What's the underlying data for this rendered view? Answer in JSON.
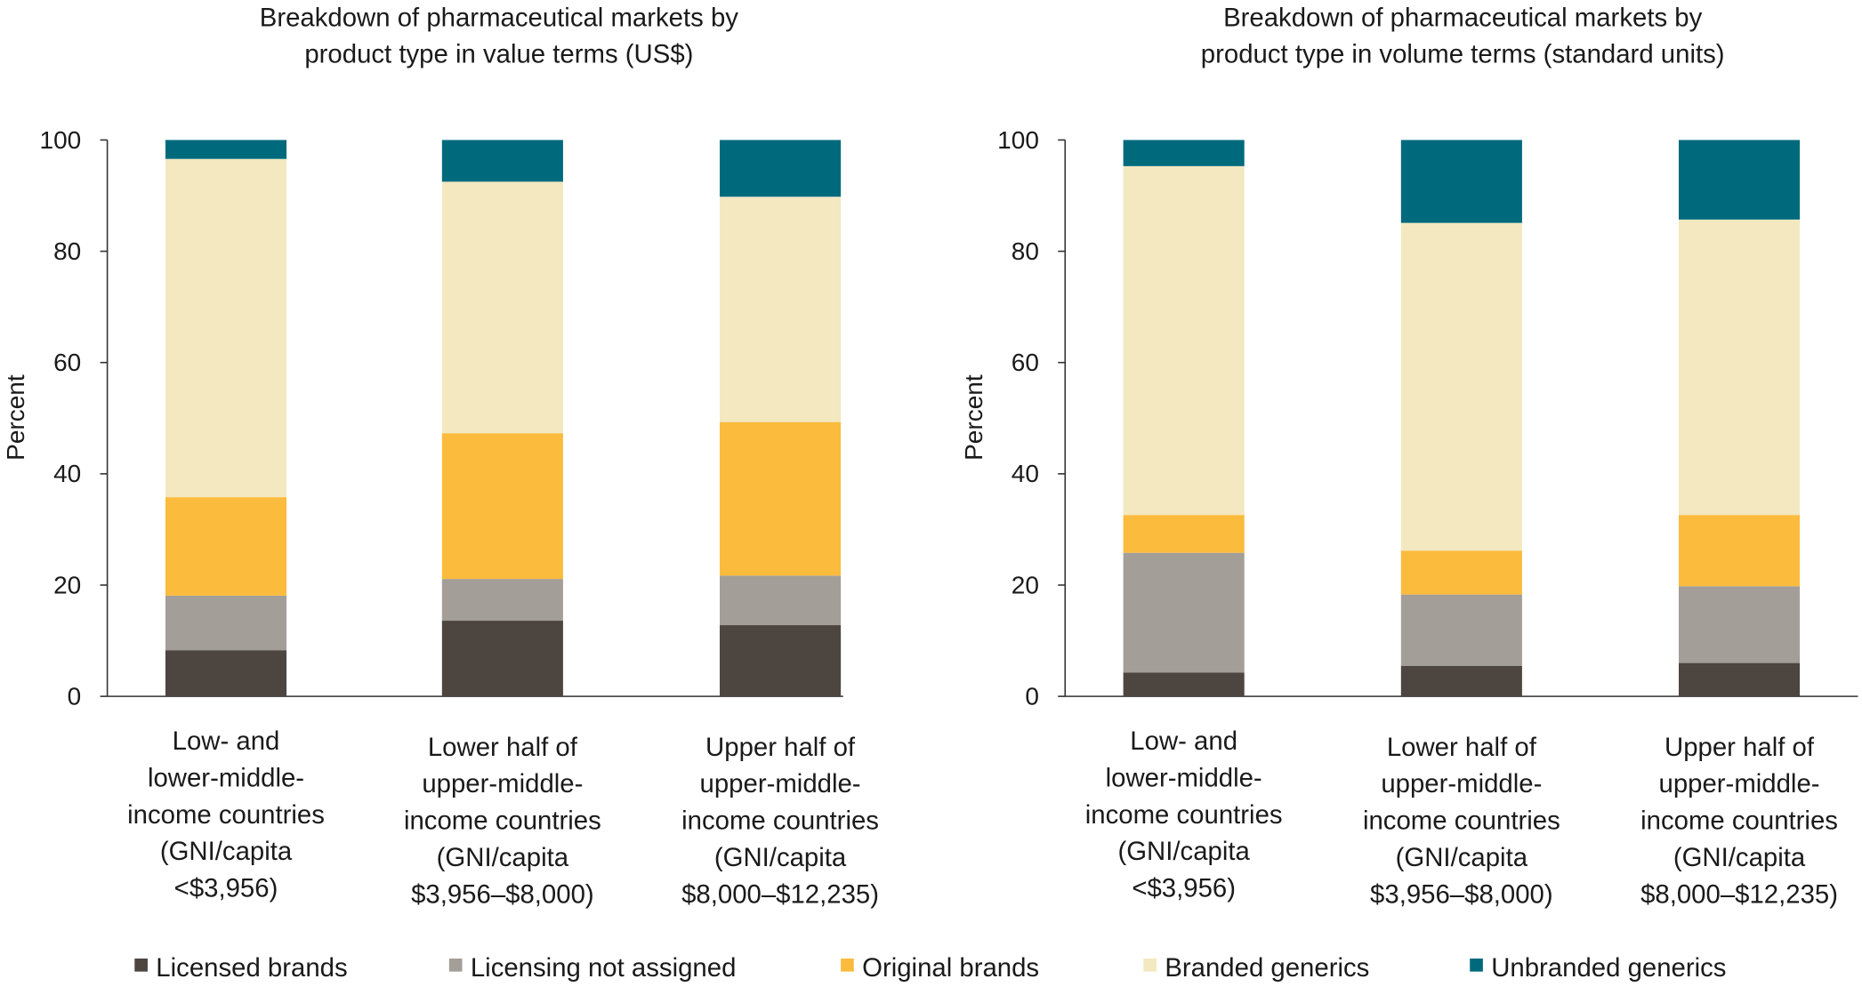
{
  "chart_data": [
    {
      "type": "bar",
      "stacked": true,
      "title_lines": [
        "Breakdown of pharmaceutical markets by",
        "product type in value terms (US$)"
      ],
      "ylabel": "Percent",
      "ylim": [
        0,
        100
      ],
      "yticks": [
        "0",
        "20",
        "40",
        "60",
        "80",
        "100"
      ],
      "categories": [
        [
          "Low- and",
          "lower-middle-",
          "income countries",
          "(GNI/capita",
          "<$3,956)"
        ],
        [
          "Lower half of",
          "upper-middle-",
          "income countries",
          "(GNI/capita",
          "$3,956–$8,000)"
        ],
        [
          "Upper half of",
          "upper-middle-",
          "income countries",
          "(GNI/capita",
          "$8,000–$12,235)"
        ]
      ],
      "series": [
        {
          "name": "Licensed brands",
          "values": [
            8.3,
            13.6,
            12.8
          ]
        },
        {
          "name": "Licensing not assigned",
          "values": [
            9.8,
            7.5,
            8.9
          ]
        },
        {
          "name": "Original brands",
          "values": [
            17.7,
            26.2,
            27.6
          ]
        },
        {
          "name": "Branded generics",
          "values": [
            60.8,
            45.2,
            40.5
          ]
        },
        {
          "name": "Unbranded generics",
          "values": [
            3.4,
            7.5,
            10.2
          ]
        }
      ]
    },
    {
      "type": "bar",
      "stacked": true,
      "title_lines": [
        "Breakdown of pharmaceutical markets by",
        "product type in volume terms (standard units)"
      ],
      "ylabel": "Percent",
      "ylim": [
        0,
        100
      ],
      "yticks": [
        "0",
        "20",
        "40",
        "60",
        "80",
        "100"
      ],
      "categories": [
        [
          "Low- and",
          "lower-middle-",
          "income countries",
          "(GNI/capita",
          "<$3,956)"
        ],
        [
          "Lower half of",
          "upper-middle-",
          "income countries",
          "(GNI/capita",
          "$3,956–$8,000)"
        ],
        [
          "Upper half of",
          "upper-middle-",
          "income countries",
          "(GNI/capita",
          "$8,000–$12,235)"
        ]
      ],
      "series": [
        {
          "name": "Licensed brands",
          "values": [
            4.3,
            5.5,
            6.0
          ]
        },
        {
          "name": "Licensing not assigned",
          "values": [
            21.5,
            12.8,
            13.8
          ]
        },
        {
          "name": "Original brands",
          "values": [
            6.8,
            7.9,
            12.8
          ]
        },
        {
          "name": "Branded generics",
          "values": [
            62.7,
            58.9,
            53.1
          ]
        },
        {
          "name": "Unbranded generics",
          "values": [
            4.7,
            14.9,
            14.3
          ]
        }
      ]
    }
  ],
  "legend": {
    "placement": "bottom",
    "items": [
      {
        "label": "Licensed brands",
        "color": "#4d4540"
      },
      {
        "label": "Licensing not assigned",
        "color": "#a39e98"
      },
      {
        "label": "Original brands",
        "color": "#fbbb3d"
      },
      {
        "label": "Branded generics",
        "color": "#f3e8c0"
      },
      {
        "label": "Unbranded generics",
        "color": "#006a7d"
      }
    ]
  }
}
